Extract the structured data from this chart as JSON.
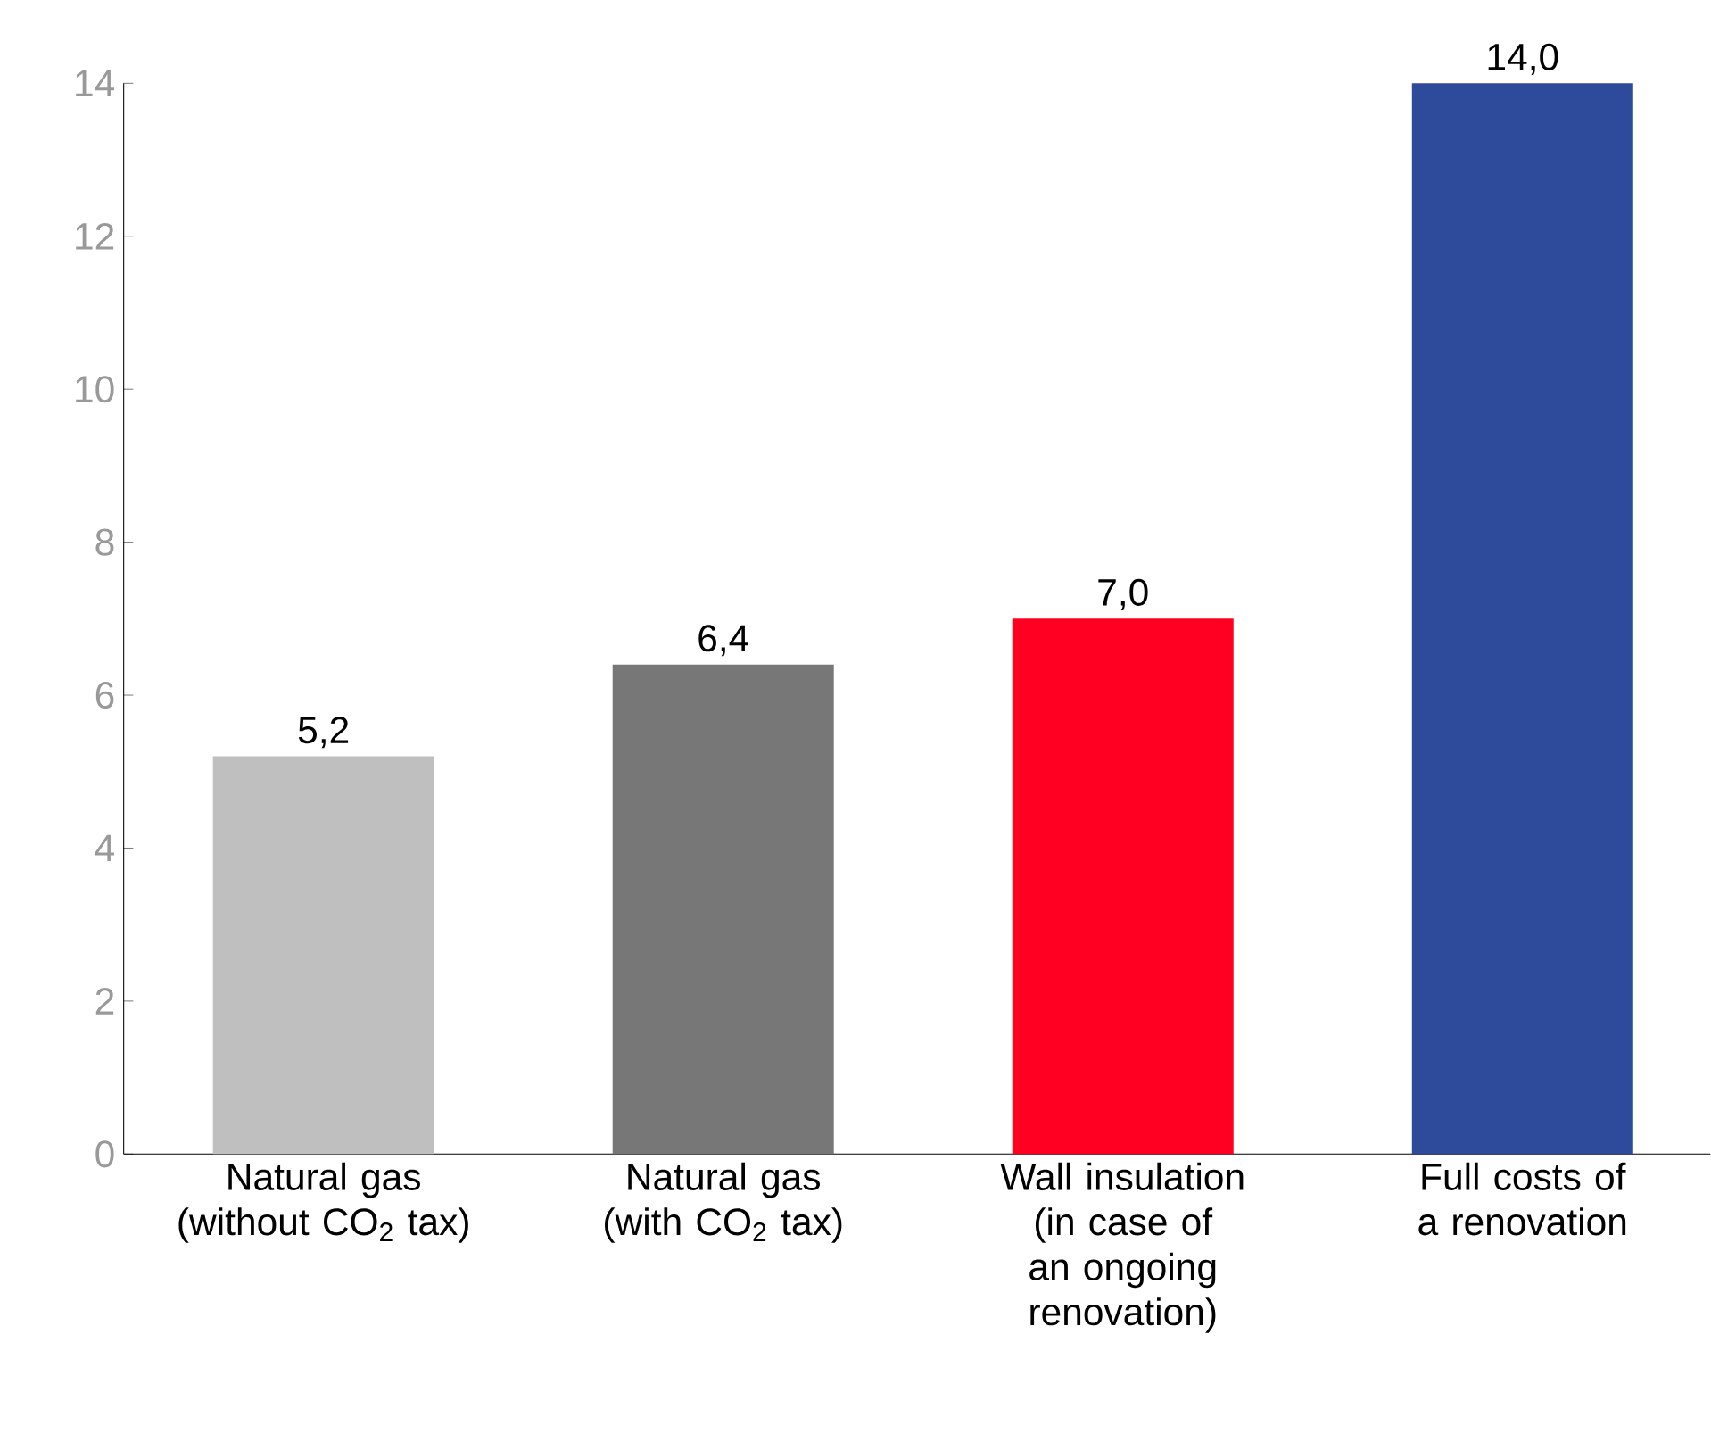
{
  "chart_data": {
    "type": "bar",
    "categories": [
      "Natural gas (without CO$_{2}$ tax)",
      "Natural gas (with CO$_{2}$ tax)",
      "Wall insulation (in case of an ongoing renovation)",
      "Full costs of a renovation"
    ],
    "values": [
      5.2,
      6.4,
      7.0,
      14.0
    ],
    "colors": [
      "#bfbfbf",
      "#777777",
      "#ff0022",
      "#2e4a9a"
    ],
    "value_labels": [
      "5,2",
      "6,4",
      "7,0",
      "14,0"
    ],
    "ylim": [
      0,
      14
    ],
    "yticks": [
      0,
      2,
      4,
      6,
      8,
      10,
      12,
      14
    ],
    "grid": false
  }
}
